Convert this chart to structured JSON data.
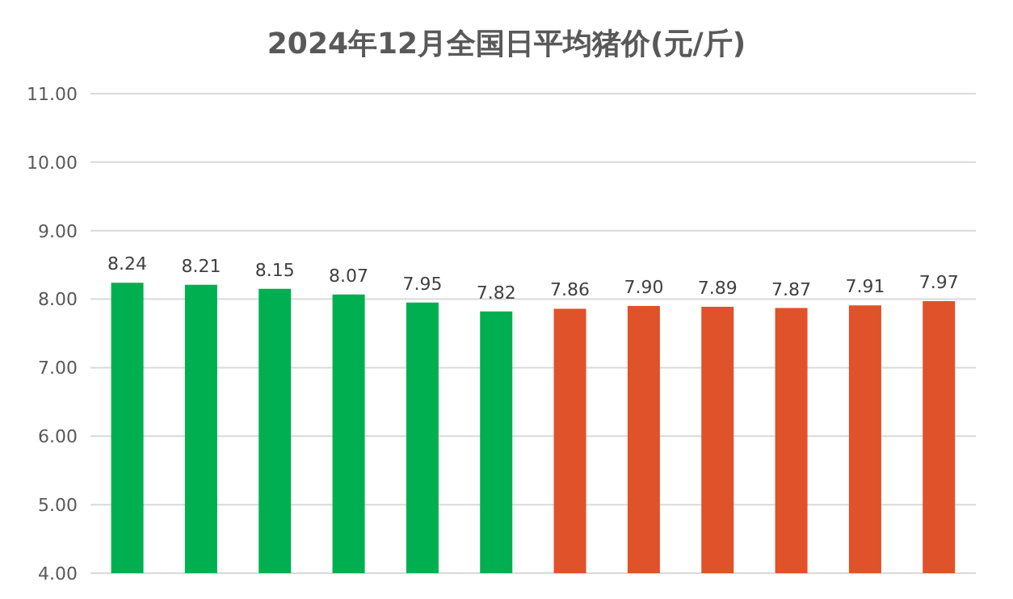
{
  "chart_data": {
    "type": "bar",
    "title": "2024年12月全国日平均猪价(元/斤)",
    "categories": [
      null,
      null,
      null,
      null,
      null,
      null,
      null,
      null,
      null,
      null,
      null,
      null
    ],
    "values": [
      8.24,
      8.21,
      8.15,
      8.07,
      7.95,
      7.82,
      7.86,
      7.9,
      7.89,
      7.87,
      7.91,
      7.97
    ],
    "value_labels": [
      "8.24",
      "8.21",
      "8.15",
      "8.07",
      "7.95",
      "7.82",
      "7.86",
      "7.90",
      "7.89",
      "7.87",
      "7.91",
      "7.97"
    ],
    "colors": [
      "#00b050",
      "#00b050",
      "#00b050",
      "#00b050",
      "#00b050",
      "#00b050",
      "#e0522a",
      "#e0522a",
      "#e0522a",
      "#e0522a",
      "#e0522a",
      "#e0522a"
    ],
    "ylim": [
      4,
      11
    ],
    "yticks": [
      {
        "value": 4,
        "label": "4.00"
      },
      {
        "value": 5,
        "label": "5.00"
      },
      {
        "value": 6,
        "label": "6.00"
      },
      {
        "value": 7,
        "label": "7.00"
      },
      {
        "value": 8,
        "label": "8.00"
      },
      {
        "value": 9,
        "label": "9.00"
      },
      {
        "value": 10,
        "label": "10.00"
      },
      {
        "value": 11,
        "label": "11.00"
      }
    ],
    "grid": "y"
  }
}
